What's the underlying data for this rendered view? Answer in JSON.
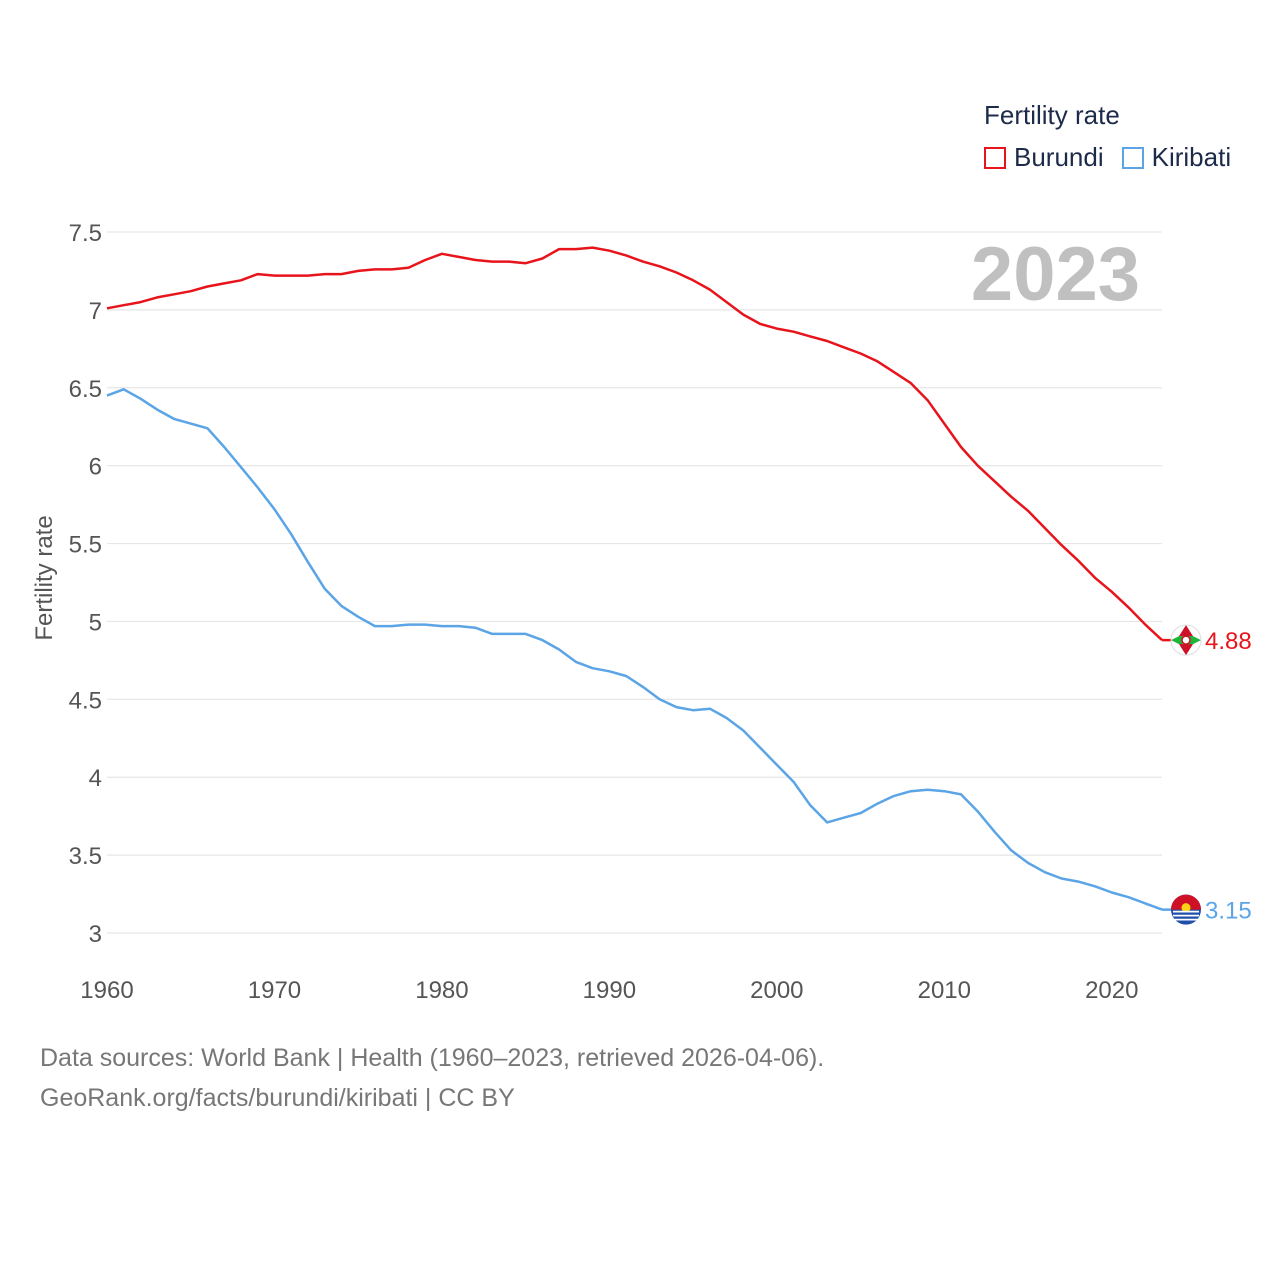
{
  "legend": {
    "title": "Fertility rate",
    "items": [
      {
        "label": "Burundi",
        "color": "#e8141c"
      },
      {
        "label": "Kiribati",
        "color": "#5ba4e6"
      }
    ]
  },
  "footer": {
    "line1": "Data sources: World Bank | Health (1960–2023, retrieved 2026-04-06).",
    "line2": "GeoRank.org/facts/burundi/kiribati | CC BY"
  },
  "chart_data": {
    "type": "line",
    "title": "",
    "year_label": "2023",
    "xlabel": "",
    "ylabel": "Fertility rate",
    "xlim": [
      1960,
      2023
    ],
    "ylim": [
      3,
      7.5
    ],
    "x_ticks": [
      1960,
      1970,
      1980,
      1990,
      2000,
      2010,
      2020
    ],
    "y_ticks": [
      3,
      3.5,
      4,
      4.5,
      5,
      5.5,
      6,
      6.5,
      7,
      7.5
    ],
    "y_tick_labels": [
      "3",
      "3.5",
      "4",
      "4.5",
      "5",
      "5.5",
      "6",
      "6.5",
      "7",
      "7.5"
    ],
    "grid": true,
    "x": [
      1960,
      1961,
      1962,
      1963,
      1964,
      1965,
      1966,
      1967,
      1968,
      1969,
      1970,
      1971,
      1972,
      1973,
      1974,
      1975,
      1976,
      1977,
      1978,
      1979,
      1980,
      1981,
      1982,
      1983,
      1984,
      1985,
      1986,
      1987,
      1988,
      1989,
      1990,
      1991,
      1992,
      1993,
      1994,
      1995,
      1996,
      1997,
      1998,
      1999,
      2000,
      2001,
      2002,
      2003,
      2004,
      2005,
      2006,
      2007,
      2008,
      2009,
      2010,
      2011,
      2012,
      2013,
      2014,
      2015,
      2016,
      2017,
      2018,
      2019,
      2020,
      2021,
      2022,
      2023
    ],
    "series": [
      {
        "name": "Burundi",
        "color": "#e8141c",
        "end_label": "4.88",
        "flag_icon": "burundi-flag-icon",
        "values": [
          7.01,
          7.03,
          7.05,
          7.08,
          7.1,
          7.12,
          7.15,
          7.17,
          7.19,
          7.23,
          7.22,
          7.22,
          7.22,
          7.23,
          7.23,
          7.25,
          7.26,
          7.26,
          7.27,
          7.32,
          7.36,
          7.34,
          7.32,
          7.31,
          7.31,
          7.3,
          7.33,
          7.39,
          7.39,
          7.4,
          7.38,
          7.35,
          7.31,
          7.28,
          7.24,
          7.19,
          7.13,
          7.05,
          6.97,
          6.91,
          6.88,
          6.86,
          6.83,
          6.8,
          6.76,
          6.72,
          6.67,
          6.6,
          6.53,
          6.42,
          6.27,
          6.12,
          6.0,
          5.9,
          5.8,
          5.71,
          5.6,
          5.49,
          5.39,
          5.28,
          5.19,
          5.09,
          4.98,
          4.88
        ]
      },
      {
        "name": "Kiribati",
        "color": "#5ba4e6",
        "end_label": "3.15",
        "flag_icon": "kiribati-flag-icon",
        "values": [
          6.45,
          6.49,
          6.43,
          6.36,
          6.3,
          6.27,
          6.24,
          6.12,
          5.99,
          5.86,
          5.72,
          5.56,
          5.38,
          5.21,
          5.1,
          5.03,
          4.97,
          4.97,
          4.98,
          4.98,
          4.97,
          4.97,
          4.96,
          4.92,
          4.92,
          4.92,
          4.88,
          4.82,
          4.74,
          4.7,
          4.68,
          4.65,
          4.58,
          4.5,
          4.45,
          4.43,
          4.44,
          4.38,
          4.3,
          4.19,
          4.08,
          3.97,
          3.82,
          3.71,
          3.74,
          3.77,
          3.83,
          3.88,
          3.91,
          3.92,
          3.91,
          3.89,
          3.78,
          3.65,
          3.53,
          3.45,
          3.39,
          3.35,
          3.33,
          3.3,
          3.26,
          3.23,
          3.19,
          3.15
        ]
      }
    ]
  }
}
